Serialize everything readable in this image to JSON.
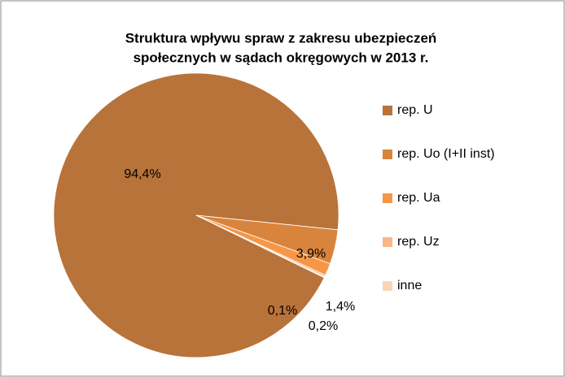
{
  "chart_data": {
    "type": "pie",
    "title": [
      "Struktura wpływu spraw z zakresu ubezpieczeń",
      "społecznych w sądach okręgowych w 2013 r."
    ],
    "categories": [
      "rep. U",
      "rep. Uo (I+II inst)",
      "rep. Ua",
      "rep. Uz",
      "inne"
    ],
    "values": [
      94.4,
      3.9,
      1.4,
      0.2,
      0.1
    ],
    "value_labels": [
      "94,4%",
      "3,9%",
      "1,4%",
      "0,2%",
      "0,1%"
    ],
    "colors": [
      "#b8733a",
      "#d9843c",
      "#f79646",
      "#fab786",
      "#fcd5b4"
    ],
    "legend": "right"
  }
}
